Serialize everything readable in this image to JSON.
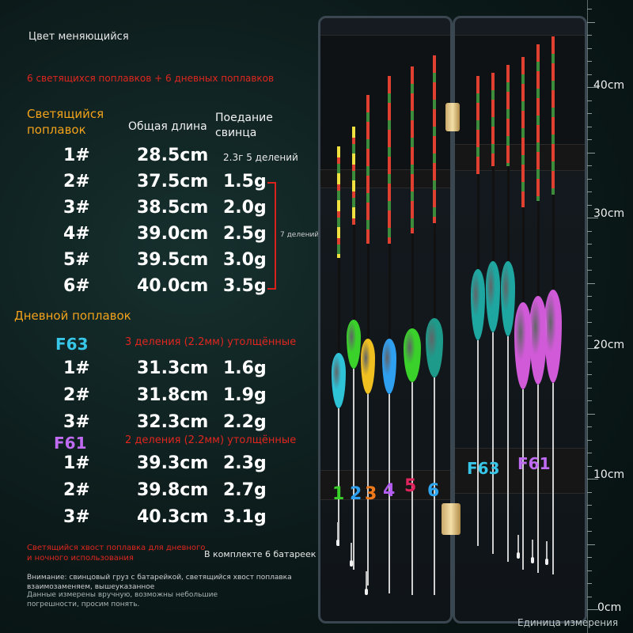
{
  "texts": {
    "header": "Цвет меняющийся",
    "subheader": "6 светящихся поплавков + 6 дневных поплавков",
    "glow_title": "Светящийся\nпоплавок",
    "col_length": "Общая длина",
    "col_lead": "Поедание\nсвинца",
    "first_row_note": "2.3г 5 делений",
    "bracket_note": "7 делений",
    "day_title": "Дневной поплавок",
    "f63_label": "F63",
    "f63_note": "3 деления (2.2мм) утолщённые",
    "f61_label": "F61",
    "f61_note": "2 деления (2.2мм) утолщённые",
    "tail_note": "Светящийся хвост поплавка для дневного\nи ночного использования",
    "battery_note": "В комплекте 6 батареек",
    "warning": "Внимание: свинцовый груз с батарейкой, светящийся хвост поплавка\nвзаимозаменяем, вышеуказанное",
    "measure_note": "Данные измерены вручную, возможны небольшие\nпогрешности, просим понять.",
    "unit_label": "Единица измерения"
  },
  "glow_rows": [
    {
      "id": "1#",
      "length": "28.5cm",
      "lead": ""
    },
    {
      "id": "2#",
      "length": "37.5cm",
      "lead": "1.5g"
    },
    {
      "id": "3#",
      "length": "38.5cm",
      "lead": "2.0g"
    },
    {
      "id": "4#",
      "length": "39.0cm",
      "lead": "2.5g"
    },
    {
      "id": "5#",
      "length": "39.5cm",
      "lead": "3.0g"
    },
    {
      "id": "6#",
      "length": "40.0cm",
      "lead": "3.5g"
    }
  ],
  "f63_rows": [
    {
      "id": "1#",
      "length": "31.3cm",
      "lead": "1.6g"
    },
    {
      "id": "2#",
      "length": "31.8cm",
      "lead": "1.9g"
    },
    {
      "id": "3#",
      "length": "32.3cm",
      "lead": "2.2g"
    }
  ],
  "f61_rows": [
    {
      "id": "1#",
      "length": "39.3cm",
      "lead": "2.3g"
    },
    {
      "id": "2#",
      "length": "39.8cm",
      "lead": "2.7g"
    },
    {
      "id": "3#",
      "length": "40.3cm",
      "lead": "3.1g"
    }
  ],
  "ruler": [
    "40cm",
    "30cm",
    "20cm",
    "10cm",
    "0cm"
  ],
  "box_numbers": [
    "1",
    "2",
    "3",
    "4",
    "5",
    "6"
  ],
  "box_number_colors": [
    "#39d12a",
    "#2f9ff0",
    "#f07a1a",
    "#b35cf0",
    "#e0245e",
    "#2fa6f0"
  ],
  "box_labels": {
    "f63": "F63",
    "f61": "F61"
  },
  "colors": {
    "glow_title": "#f2a21b",
    "accent_red": "#e0261f",
    "f63": "#38c6e8",
    "f61": "#c06cf2"
  }
}
